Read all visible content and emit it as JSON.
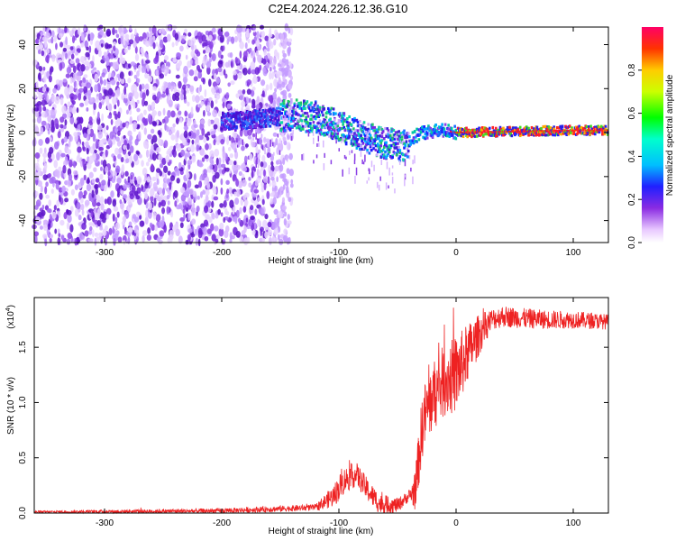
{
  "title": "C2E4.2024.226.12.36.G10",
  "chart_data": [
    {
      "type": "heatmap",
      "name": "spectrogram",
      "xlabel": "Height of straight line (km)",
      "ylabel": "Frequency (Hz)",
      "xlim": [
        -360,
        130
      ],
      "ylim": [
        -50,
        48
      ],
      "xticks": [
        -300,
        -200,
        -100,
        0,
        100
      ],
      "yticks": [
        -40,
        -20,
        0,
        20,
        40
      ],
      "noise_region_x": [
        -360,
        -148
      ],
      "signal_track": {
        "x": [
          -190,
          -140,
          -120,
          -100,
          -80,
          -60,
          -45,
          -30,
          -10,
          0,
          50,
          100,
          130
        ],
        "freq_hz": [
          5,
          8,
          7,
          3,
          -2,
          -5,
          -6,
          0,
          1,
          0,
          0.5,
          1,
          1
        ]
      },
      "colorbar": {
        "label": "Normalized spectral amplitude",
        "range": [
          0.0,
          1.0
        ],
        "ticks": [
          0.0,
          0.2,
          0.4,
          0.6,
          0.8
        ],
        "tick_labels": [
          "0.0",
          "0.2",
          "0.4",
          "0.6",
          "0.8"
        ]
      }
    },
    {
      "type": "line",
      "name": "snr",
      "xlabel": "Height of straight line (km)",
      "ylabel": "SNR (10 * v/v)",
      "scale_label": "(x10",
      "scale_exp": "4",
      "scale_close": ")",
      "color": "#ee2222",
      "xlim": [
        -360,
        130
      ],
      "ylim": [
        0,
        1.95
      ],
      "xticks": [
        -300,
        -200,
        -100,
        0,
        100
      ],
      "yticks": [
        0.0,
        0.5,
        1.0,
        1.5
      ],
      "ytick_labels": [
        "0.0",
        "0.5",
        "1.0",
        "1.5"
      ],
      "trend": {
        "x": [
          -360,
          -200,
          -120,
          -105,
          -95,
          -85,
          -75,
          -65,
          -50,
          -35,
          -28,
          -20,
          -10,
          0,
          10,
          20,
          30,
          40,
          60,
          80,
          100,
          130
        ],
        "y": [
          0.01,
          0.02,
          0.05,
          0.15,
          0.3,
          0.35,
          0.2,
          0.08,
          0.07,
          0.2,
          0.85,
          1.05,
          1.2,
          1.25,
          1.45,
          1.62,
          1.75,
          1.78,
          1.76,
          1.75,
          1.75,
          1.73
        ]
      },
      "noise_amp": {
        "x": [
          -360,
          -120,
          -100,
          -70,
          -40,
          -30,
          0,
          30,
          130
        ],
        "y": [
          0.01,
          0.03,
          0.12,
          0.1,
          0.05,
          0.3,
          0.35,
          0.1,
          0.07
        ]
      }
    }
  ]
}
